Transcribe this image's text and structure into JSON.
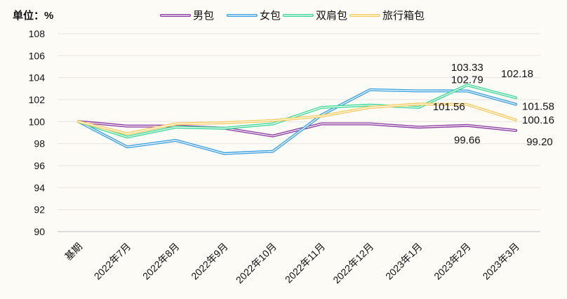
{
  "chart_data": {
    "type": "line",
    "unit_label": "单位：%",
    "categories": [
      "基期",
      "2022年7月",
      "2022年8月",
      "2022年9月",
      "2022年10月",
      "2022年11月",
      "2022年12月",
      "2023年1月",
      "2023年2月",
      "2023年3月"
    ],
    "ylim": [
      90,
      108
    ],
    "yticks": [
      90,
      92,
      94,
      96,
      98,
      100,
      102,
      104,
      106,
      108
    ],
    "grid": true,
    "legend_position": "top",
    "series": [
      {
        "name": "男包",
        "color": "#8e3fa6",
        "values": [
          100,
          99.6,
          99.6,
          99.4,
          98.7,
          99.8,
          99.8,
          99.5,
          99.66,
          99.2
        ]
      },
      {
        "name": "女包",
        "color": "#3ea3e4",
        "values": [
          100,
          97.7,
          98.3,
          97.1,
          97.3,
          100.6,
          102.9,
          102.8,
          102.79,
          101.58
        ]
      },
      {
        "name": "双肩包",
        "color": "#3fd99a",
        "values": [
          100,
          98.6,
          99.5,
          99.4,
          99.8,
          101.3,
          101.5,
          101.3,
          103.33,
          102.18
        ]
      },
      {
        "name": "旅行箱包",
        "color": "#f6cd63",
        "values": [
          100,
          98.9,
          99.8,
          99.9,
          100.1,
          100.5,
          101.3,
          101.6,
          101.56,
          100.16
        ]
      }
    ],
    "annotations": [
      {
        "text": "103.33",
        "series": "双肩包",
        "category": "2023年2月"
      },
      {
        "text": "102.79",
        "series": "女包",
        "category": "2023年2月"
      },
      {
        "text": "101.56",
        "series": "旅行箱包",
        "category": "2023年2月"
      },
      {
        "text": "99.66",
        "series": "男包",
        "category": "2023年2月"
      },
      {
        "text": "102.18",
        "series": "双肩包",
        "category": "2023年3月"
      },
      {
        "text": "101.58",
        "series": "女包",
        "category": "2023年3月"
      },
      {
        "text": "100.16",
        "series": "旅行箱包",
        "category": "2023年3月"
      },
      {
        "text": "99.20",
        "series": "男包",
        "category": "2023年3月"
      }
    ]
  }
}
